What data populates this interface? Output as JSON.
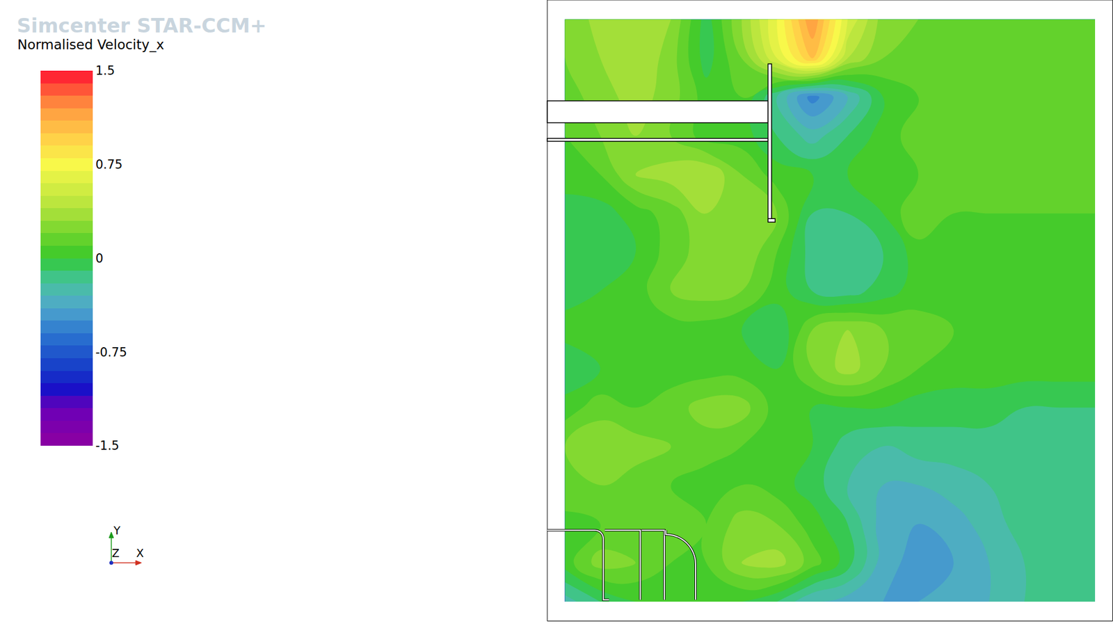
{
  "chart_data": {
    "type": "contour",
    "title": "Normalised Velocity_x",
    "watermark": "Simcenter STAR-CCM+",
    "z": [
      [
        0.2,
        0.35,
        0.4,
        0.3,
        -0.05,
        0.3,
        0.7,
        1.2,
        0.6,
        0.25,
        0.2,
        0.15,
        0.15,
        0.15,
        0.1,
        0.15
      ],
      [
        0.2,
        0.3,
        0.4,
        0.25,
        -0.05,
        0.2,
        0.6,
        1.0,
        0.4,
        0.2,
        0.15,
        0.15,
        0.15,
        0.15,
        0.15,
        0.15
      ],
      [
        0.15,
        0.25,
        0.35,
        0.25,
        0.05,
        0.1,
        -0.2,
        -0.55,
        -0.3,
        0.0,
        0.1,
        0.15,
        0.15,
        0.15,
        0.15,
        0.15
      ],
      [
        0.1,
        0.2,
        0.3,
        0.2,
        0.05,
        0.05,
        -0.1,
        -0.25,
        -0.1,
        0.05,
        0.15,
        0.15,
        0.15,
        0.15,
        0.15,
        0.15
      ],
      [
        0.05,
        0.1,
        0.3,
        0.35,
        0.4,
        0.2,
        0.05,
        0.0,
        0.0,
        0.05,
        0.1,
        0.15,
        0.15,
        0.15,
        0.15,
        0.15
      ],
      [
        -0.05,
        -0.05,
        0.05,
        0.15,
        0.3,
        0.3,
        0.2,
        -0.1,
        -0.1,
        0.0,
        0.2,
        0.1,
        0.1,
        0.1,
        0.1,
        0.1
      ],
      [
        -0.1,
        -0.1,
        0.0,
        0.15,
        0.25,
        0.3,
        0.1,
        -0.15,
        -0.2,
        -0.1,
        0.05,
        0.1,
        0.1,
        0.1,
        0.1,
        0.1
      ],
      [
        -0.05,
        0.0,
        0.05,
        0.2,
        0.25,
        0.2,
        0.05,
        -0.1,
        -0.15,
        -0.05,
        0.05,
        0.1,
        0.1,
        0.1,
        0.1,
        0.1
      ],
      [
        0.05,
        0.1,
        0.05,
        0.05,
        0.05,
        0.0,
        -0.1,
        0.2,
        0.3,
        0.2,
        0.15,
        0.1,
        0.05,
        0.05,
        0.05,
        0.05
      ],
      [
        -0.1,
        0.0,
        0.05,
        0.05,
        0.05,
        0.05,
        0.0,
        0.2,
        0.35,
        0.2,
        0.1,
        0.05,
        0.05,
        0.05,
        0.05,
        0.05
      ],
      [
        0.05,
        0.15,
        0.1,
        0.15,
        0.25,
        0.25,
        0.05,
        0.0,
        0.0,
        0.0,
        -0.05,
        -0.05,
        -0.05,
        -0.1,
        -0.1,
        -0.1
      ],
      [
        0.2,
        0.3,
        0.25,
        0.2,
        0.15,
        0.1,
        0.05,
        0.0,
        -0.15,
        -0.2,
        -0.15,
        -0.15,
        -0.15,
        -0.15,
        -0.15,
        -0.15
      ],
      [
        0.2,
        0.2,
        0.15,
        0.1,
        0.05,
        0.1,
        0.05,
        -0.05,
        -0.2,
        -0.3,
        -0.3,
        -0.25,
        -0.2,
        -0.15,
        -0.15,
        -0.15
      ],
      [
        0.05,
        0.1,
        0.2,
        0.15,
        0.1,
        0.25,
        0.2,
        0.05,
        -0.1,
        -0.35,
        -0.4,
        -0.35,
        -0.25,
        -0.15,
        -0.15,
        -0.15
      ],
      [
        0.05,
        0.25,
        0.2,
        0.1,
        0.1,
        0.3,
        0.35,
        0.15,
        -0.05,
        -0.35,
        -0.45,
        -0.4,
        -0.3,
        -0.2,
        -0.15,
        -0.15
      ],
      [
        -0.25,
        -0.1,
        0.0,
        0.05,
        0.05,
        0.0,
        -0.1,
        -0.3,
        -0.35,
        -0.4,
        -0.4,
        -0.35,
        -0.3,
        -0.2,
        -0.15,
        -0.15
      ]
    ],
    "zlim": [
      -1.5,
      1.5
    ],
    "zticks": [
      1.5,
      0.75,
      0,
      -0.75,
      -1.5
    ],
    "tick_labels": false,
    "triad": {
      "x": "X",
      "y": "Y",
      "z": "Z"
    }
  }
}
